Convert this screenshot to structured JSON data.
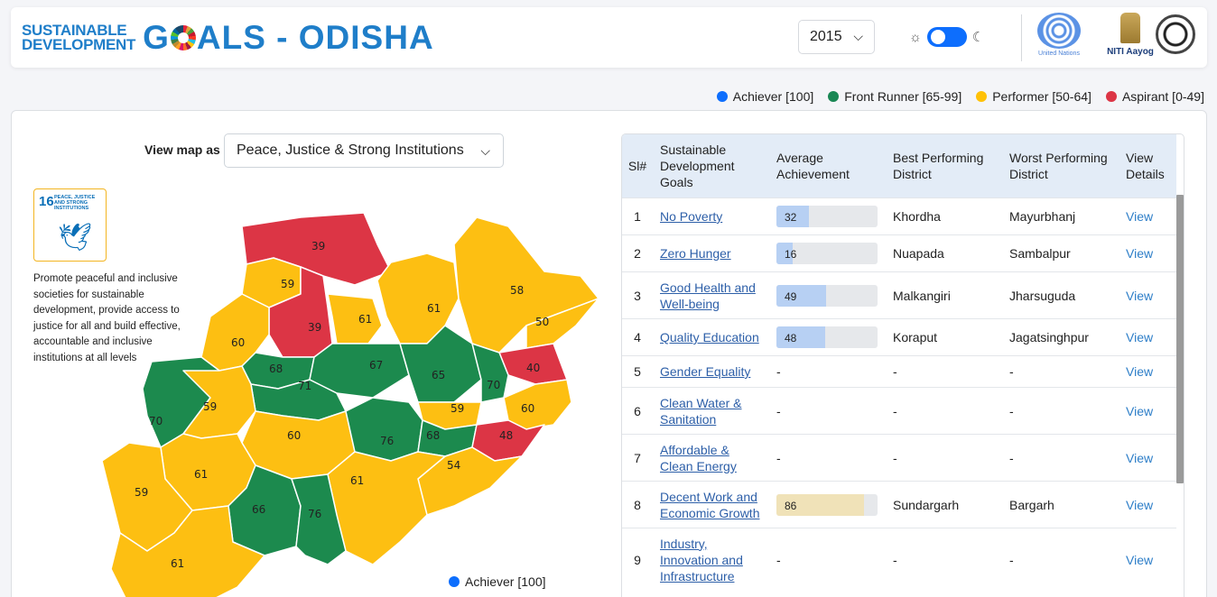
{
  "header": {
    "brand_line1": "SUSTAINABLE",
    "brand_line2": "DEVELOPMENT",
    "brand_big_pre": "G",
    "brand_big_post": "ALS - ODISHA",
    "year": "2015",
    "un_caption": "United Nations",
    "niti_caption": "NITI Aayog"
  },
  "legend": [
    {
      "label": "Achiever [100]",
      "color": "#0d6efd"
    },
    {
      "label": "Front Runner [65-99]",
      "color": "#198754"
    },
    {
      "label": "Performer [50-64]",
      "color": "#ffc107"
    },
    {
      "label": "Aspirant [0-49]",
      "color": "#dc3545"
    }
  ],
  "map_panel": {
    "view_label": "View map as",
    "selected_goal": "Peace, Justice & Strong Institutions",
    "sdg_number": "16",
    "sdg_tile_text": "PEACE, JUSTICE AND STRONG INSTITUTIONS",
    "description": "Promote peaceful and inclusive societies for sustainable development, provide access to justice for all and build effective, accountable and inclusive institutions at all levels",
    "district_scores": [
      "39",
      "59",
      "61",
      "58",
      "61",
      "50",
      "60",
      "39",
      "40",
      "68",
      "67",
      "71",
      "65",
      "70",
      "70",
      "59",
      "60",
      "59",
      "60",
      "76",
      "68",
      "48",
      "61",
      "54",
      "61",
      "59",
      "66",
      "76",
      "61"
    ],
    "bottom_legend": "Achiever [100]"
  },
  "table": {
    "headers": {
      "sl": "Sl#",
      "goal": "Sustainable Development Goals",
      "avg": "Average Achievement",
      "best": "Best Performing District",
      "worst": "Worst Performing District",
      "view": "View Details"
    },
    "rows": [
      {
        "sl": "1",
        "goal": "No Poverty",
        "avg": "32",
        "best": "Khordha",
        "worst": "Mayurbhanj",
        "view": "View"
      },
      {
        "sl": "2",
        "goal": "Zero Hunger",
        "avg": "16",
        "best": "Nuapada",
        "worst": "Sambalpur",
        "view": "View"
      },
      {
        "sl": "3",
        "goal": "Good Health and Well-being",
        "avg": "49",
        "best": "Malkangiri",
        "worst": "Jharsuguda",
        "view": "View"
      },
      {
        "sl": "4",
        "goal": "Quality Education",
        "avg": "48",
        "best": "Koraput",
        "worst": "Jagatsinghpur",
        "view": "View"
      },
      {
        "sl": "5",
        "goal": "Gender Equality",
        "avg": "-",
        "best": "-",
        "worst": "-",
        "view": "View"
      },
      {
        "sl": "6",
        "goal": "Clean Water & Sanitation",
        "avg": "-",
        "best": "-",
        "worst": "-",
        "view": "View"
      },
      {
        "sl": "7",
        "goal": "Affordable & Clean Energy",
        "avg": "-",
        "best": "-",
        "worst": "-",
        "view": "View"
      },
      {
        "sl": "8",
        "goal": "Decent Work and Economic Growth",
        "avg": "86",
        "best": "Sundargarh",
        "worst": "Bargarh",
        "view": "View"
      },
      {
        "sl": "9",
        "goal": "Industry, Innovation and Infrastructure",
        "avg": "-",
        "best": "-",
        "worst": "-",
        "view": "View"
      }
    ]
  },
  "colors": {
    "aspirant": "#dc3545",
    "performer": "#fdbf12",
    "front_runner": "#1c8a4e",
    "bar_low": "#b7d0f3",
    "bar_high": "#f0e2b8"
  }
}
